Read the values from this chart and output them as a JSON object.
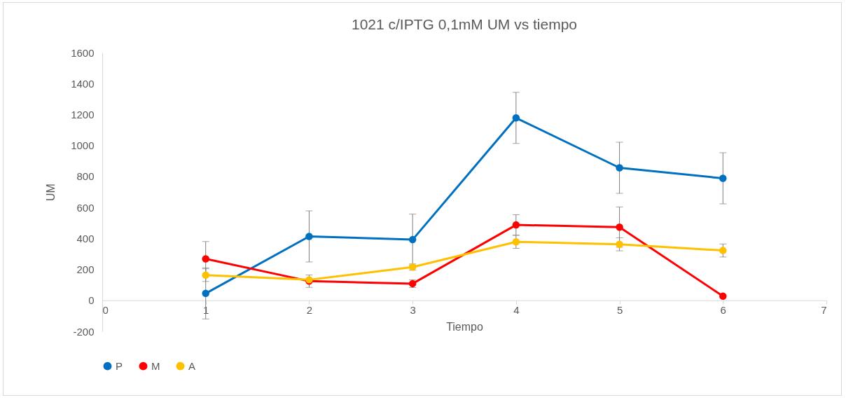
{
  "chart_data": {
    "type": "line",
    "title": "1021 c/IPTG 0,1mM  UM vs tiempo",
    "xlabel": "Tiempo",
    "ylabel": "UM",
    "x": [
      1,
      2,
      3,
      4,
      5,
      6
    ],
    "series": [
      {
        "name": "P",
        "color": "#0070c0",
        "values": [
          45,
          413,
          392,
          1178,
          856,
          788
        ],
        "errors": [
          165,
          165,
          165,
          165,
          165,
          165
        ]
      },
      {
        "name": "M",
        "color": "#ff0000",
        "values": [
          268,
          124,
          108,
          487,
          473,
          27
        ],
        "errors": [
          112,
          40,
          25,
          66,
          130,
          null
        ]
      },
      {
        "name": "A",
        "color": "#ffc000",
        "values": [
          163,
          133,
          215,
          378,
          362,
          322
        ],
        "errors": [
          41,
          null,
          20,
          42,
          42,
          42
        ]
      }
    ],
    "xlim": [
      0,
      7
    ],
    "xticks": [
      0,
      1,
      2,
      3,
      4,
      5,
      6,
      7
    ],
    "ylim": [
      -200,
      1600
    ],
    "yticks": [
      -200,
      0,
      200,
      400,
      600,
      800,
      1000,
      1200,
      1400,
      1600
    ],
    "grid": false,
    "legend": "bottom",
    "marker": "circle",
    "line_style": "solid"
  }
}
